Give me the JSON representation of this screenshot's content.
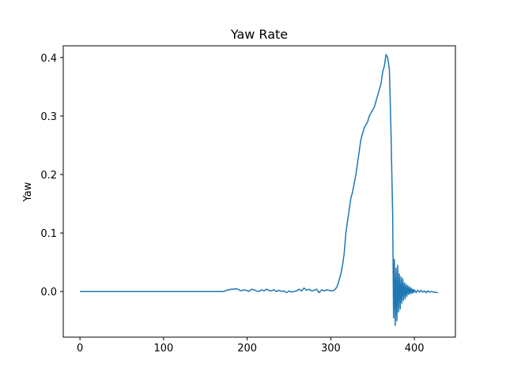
{
  "chart_data": {
    "type": "line",
    "title": "Yaw Rate",
    "xlabel": "",
    "ylabel": "Yaw",
    "xlim": [
      -20,
      449
    ],
    "ylim": [
      -0.078,
      0.42
    ],
    "xticks": [
      0,
      100,
      200,
      300,
      400
    ],
    "yticks": [
      0.0,
      0.1,
      0.2,
      0.3,
      0.4
    ],
    "ytick_labels": [
      "0.0",
      "0.1",
      "0.2",
      "0.3",
      "0.4"
    ],
    "grid": false,
    "colors": {
      "line": "#1f77b4",
      "axes": "#000000",
      "background": "#ffffff"
    },
    "series": [
      {
        "x": [
          0,
          10,
          20,
          30,
          40,
          50,
          60,
          70,
          80,
          90,
          100,
          110,
          120,
          130,
          140,
          150,
          160,
          170,
          172,
          175,
          178,
          181,
          184,
          187,
          190,
          193,
          196,
          199,
          202,
          205,
          208,
          211,
          214,
          217,
          220,
          223,
          226,
          229,
          232,
          235,
          238,
          241,
          244,
          247,
          250,
          253,
          256,
          259,
          262,
          265,
          268,
          271,
          274,
          277,
          280,
          283,
          286,
          289,
          292,
          295,
          298,
          301,
          304,
          306,
          308,
          310,
          312,
          314,
          316,
          318,
          320,
          322,
          324,
          326,
          328,
          330,
          332,
          334,
          336,
          338,
          340,
          342,
          344,
          346,
          348,
          350,
          352,
          354,
          356,
          358,
          360,
          362,
          364,
          366,
          368,
          370,
          371,
          372,
          373,
          374,
          375,
          376,
          377,
          378,
          379,
          380,
          381,
          382,
          383,
          384,
          385,
          386,
          387,
          388,
          389,
          390,
          391,
          392,
          393,
          394,
          395,
          396,
          397,
          398,
          399,
          400,
          402,
          404,
          406,
          408,
          410,
          412,
          414,
          416,
          418,
          420,
          424,
          428
        ],
        "y": [
          0.0,
          0.0,
          0.0,
          0.0,
          0.0,
          0.0,
          0.0,
          0.0,
          0.0,
          0.0,
          0.0,
          0.0,
          0.0,
          0.0,
          0.0,
          0.0,
          0.0,
          0.0,
          0.0,
          0.002,
          0.003,
          0.004,
          0.004,
          0.005,
          0.003,
          0.001,
          0.003,
          0.002,
          0.0,
          0.004,
          0.003,
          0.001,
          0.0,
          0.003,
          0.001,
          0.004,
          0.002,
          0.001,
          0.003,
          0.0,
          0.002,
          0.0,
          0.001,
          -0.002,
          0.001,
          -0.001,
          0.0,
          0.001,
          0.004,
          0.001,
          0.006,
          0.002,
          0.004,
          0.001,
          0.002,
          0.004,
          -0.002,
          0.003,
          0.001,
          0.003,
          0.002,
          0.001,
          0.002,
          0.005,
          0.01,
          0.02,
          0.03,
          0.045,
          0.065,
          0.1,
          0.12,
          0.14,
          0.16,
          0.17,
          0.185,
          0.2,
          0.22,
          0.24,
          0.26,
          0.27,
          0.28,
          0.285,
          0.29,
          0.3,
          0.305,
          0.31,
          0.315,
          0.325,
          0.335,
          0.345,
          0.355,
          0.375,
          0.385,
          0.405,
          0.4,
          0.38,
          0.33,
          0.27,
          0.2,
          0.13,
          -0.045,
          0.055,
          -0.058,
          0.04,
          -0.05,
          0.045,
          -0.035,
          0.03,
          -0.03,
          0.025,
          -0.02,
          0.022,
          -0.015,
          0.015,
          -0.012,
          0.012,
          -0.008,
          0.01,
          -0.005,
          0.008,
          -0.004,
          0.006,
          -0.003,
          0.004,
          -0.002,
          0.003,
          -0.002,
          0.002,
          -0.001,
          0.002,
          -0.001,
          0.001,
          -0.002,
          0.001,
          -0.001,
          0.0,
          -0.001,
          -0.002
        ]
      }
    ]
  }
}
